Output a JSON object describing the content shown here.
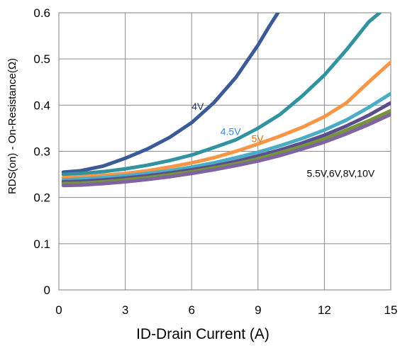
{
  "chart_data": {
    "type": "line",
    "xlabel": "ID-Drain Current (A)",
    "ylabel": "RDS(on) - On-Resistance(Ω)",
    "xlim": [
      0,
      15
    ],
    "ylim": [
      0,
      0.6
    ],
    "x_ticks": [
      "0",
      "3",
      "6",
      "9",
      "12",
      "15"
    ],
    "y_ticks": [
      "0",
      "0.1",
      "0.2",
      "0.3",
      "0.4",
      "0.5",
      "0.6"
    ],
    "grid": true,
    "series": [
      {
        "name": "4V",
        "color": "#3a5a98",
        "label_color": "#1f3864",
        "x": [
          0.2,
          1,
          2,
          3,
          4,
          5,
          6,
          7,
          8,
          9,
          9.5,
          9.9
        ],
        "y": [
          0.255,
          0.258,
          0.268,
          0.285,
          0.305,
          0.33,
          0.362,
          0.405,
          0.46,
          0.53,
          0.57,
          0.6
        ]
      },
      {
        "name": "4.5V",
        "color": "#31939f",
        "label_color": "#2e8bd8",
        "x": [
          0.2,
          1,
          2,
          3,
          4,
          5,
          6,
          7,
          8,
          9,
          10,
          11,
          12,
          13,
          14,
          14.5
        ],
        "y": [
          0.25,
          0.252,
          0.256,
          0.262,
          0.27,
          0.28,
          0.292,
          0.308,
          0.325,
          0.35,
          0.38,
          0.42,
          0.465,
          0.52,
          0.58,
          0.6
        ]
      },
      {
        "name": "5V",
        "color": "#f79646",
        "label_color": "#e46c0a",
        "x": [
          0.2,
          1,
          2,
          3,
          4,
          5,
          6,
          7,
          8,
          9,
          10,
          11,
          12,
          13,
          14,
          15
        ],
        "y": [
          0.243,
          0.245,
          0.248,
          0.252,
          0.258,
          0.266,
          0.275,
          0.286,
          0.3,
          0.316,
          0.333,
          0.352,
          0.375,
          0.405,
          0.45,
          0.493
        ]
      },
      {
        "name": "5.5V",
        "color": "#4bacc6",
        "label_color": "#000000",
        "x": [
          0.2,
          1,
          2,
          3,
          4,
          5,
          6,
          7,
          8,
          9,
          10,
          11,
          12,
          13,
          14,
          15
        ],
        "y": [
          0.238,
          0.24,
          0.243,
          0.247,
          0.252,
          0.258,
          0.266,
          0.275,
          0.286,
          0.298,
          0.312,
          0.328,
          0.346,
          0.368,
          0.395,
          0.425
        ]
      },
      {
        "name": "6V",
        "color": "#5a4e8c",
        "label_color": "#000000",
        "x": [
          0.2,
          1,
          2,
          3,
          4,
          5,
          6,
          7,
          8,
          9,
          10,
          11,
          12,
          13,
          14,
          15
        ],
        "y": [
          0.234,
          0.235,
          0.238,
          0.242,
          0.247,
          0.253,
          0.26,
          0.268,
          0.278,
          0.29,
          0.303,
          0.318,
          0.335,
          0.355,
          0.378,
          0.405
        ]
      },
      {
        "name": "8V",
        "color": "#77933c",
        "label_color": "#000000",
        "x": [
          0.2,
          1,
          2,
          3,
          4,
          5,
          6,
          7,
          8,
          9,
          10,
          11,
          12,
          13,
          14,
          15
        ],
        "y": [
          0.23,
          0.231,
          0.234,
          0.238,
          0.243,
          0.249,
          0.256,
          0.264,
          0.273,
          0.284,
          0.297,
          0.311,
          0.327,
          0.346,
          0.366,
          0.388
        ]
      },
      {
        "name": "10V",
        "color": "#8064a2",
        "label_color": "#000000",
        "x": [
          0.2,
          1,
          2,
          3,
          4,
          5,
          6,
          7,
          8,
          9,
          10,
          11,
          12,
          13,
          14,
          15
        ],
        "y": [
          0.226,
          0.227,
          0.23,
          0.234,
          0.239,
          0.245,
          0.252,
          0.26,
          0.269,
          0.279,
          0.291,
          0.305,
          0.32,
          0.338,
          0.358,
          0.38
        ]
      }
    ],
    "annotations": [
      {
        "text": "4V",
        "x": 6.0,
        "y": 0.39,
        "color": "#1f3864"
      },
      {
        "text": "4.5V",
        "x": 7.3,
        "y": 0.335,
        "color": "#2e8bd8"
      },
      {
        "text": "5V",
        "x": 8.7,
        "y": 0.32,
        "color": "#e46c0a"
      },
      {
        "text": "5.5V,6V,8V,10V",
        "x": 11.2,
        "y": 0.245,
        "color": "#000000"
      }
    ]
  }
}
